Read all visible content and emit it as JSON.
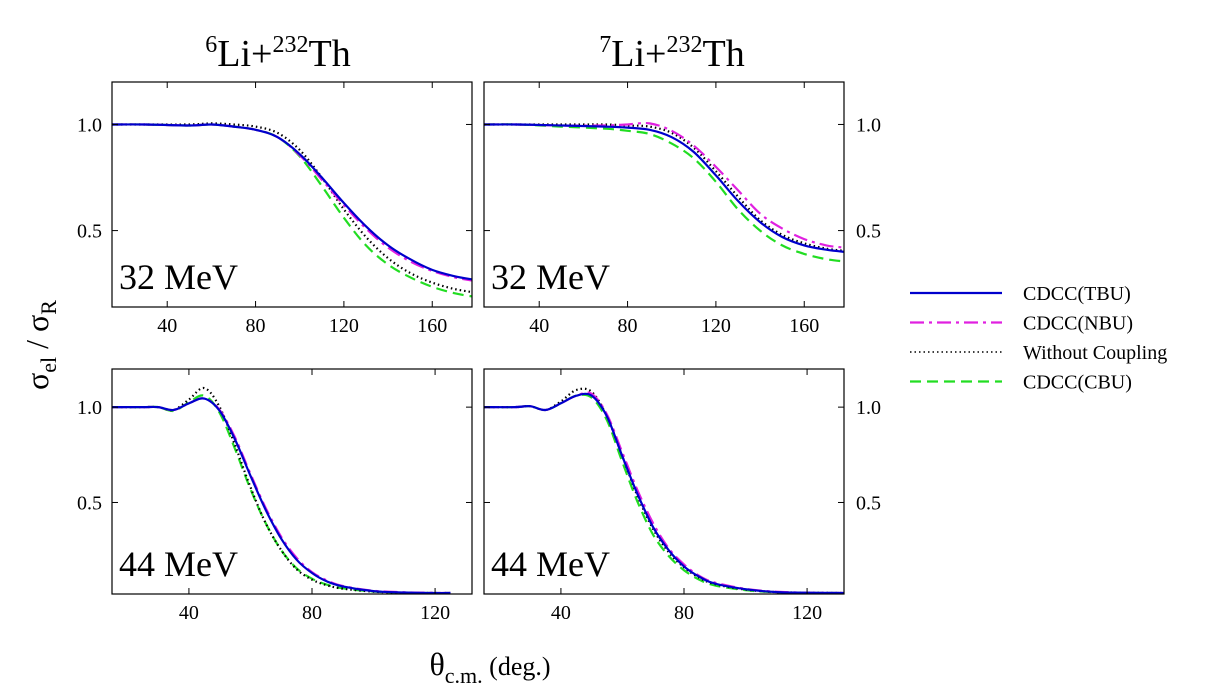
{
  "figure": {
    "ylabel_main": "σ",
    "ylabel_sub1": "el",
    "ylabel_slash": " / σ",
    "ylabel_sub2": "R",
    "xlabel_main": "θ",
    "xlabel_sub": "c.m.",
    "xlabel_unit": " (deg.)",
    "columns": [
      {
        "mass": "6",
        "proj": "Li+",
        "tmass": "232",
        "target": "Th"
      },
      {
        "mass": "7",
        "proj": "Li+",
        "tmass": "232",
        "target": "Th"
      }
    ]
  },
  "legend": [
    {
      "label": "CDCC(TBU)",
      "color": "#0000cc",
      "dash": "solid"
    },
    {
      "label": "CDCC(NBU)",
      "color": "#e020e0",
      "dash": "dashdot"
    },
    {
      "label": "Without Coupling",
      "color": "#000000",
      "dash": "dotted"
    },
    {
      "label": "CDCC(CBU)",
      "color": "#22dd22",
      "dash": "dashed"
    }
  ],
  "chart_data": [
    {
      "type": "line",
      "system": "6Li+232Th",
      "energy": "32 MeV",
      "xlim": [
        15,
        178
      ],
      "ylim": [
        0.14,
        1.2
      ],
      "xticks": [
        40,
        80,
        120,
        160
      ],
      "yticks": [
        0.5,
        1.0
      ],
      "ytick_labels": [
        "0.5",
        "1.0"
      ],
      "ytick_side": "left",
      "series": [
        {
          "name": "CDCC(TBU)",
          "x": [
            15,
            30,
            50,
            60,
            70,
            80,
            90,
            100,
            110,
            120,
            130,
            140,
            150,
            160,
            170,
            178
          ],
          "y": [
            1.0,
            1.0,
            0.995,
            1.0,
            0.99,
            0.975,
            0.94,
            0.86,
            0.75,
            0.63,
            0.52,
            0.43,
            0.365,
            0.315,
            0.285,
            0.27
          ]
        },
        {
          "name": "CDCC(NBU)",
          "x": [
            15,
            30,
            50,
            60,
            70,
            80,
            90,
            100,
            110,
            120,
            130,
            140,
            150,
            160,
            170,
            178
          ],
          "y": [
            1.0,
            1.0,
            0.995,
            1.0,
            0.99,
            0.975,
            0.94,
            0.855,
            0.74,
            0.62,
            0.51,
            0.42,
            0.355,
            0.31,
            0.28,
            0.265
          ]
        },
        {
          "name": "Without Coupling",
          "x": [
            15,
            30,
            50,
            60,
            70,
            80,
            90,
            100,
            110,
            120,
            130,
            140,
            150,
            160,
            170,
            178
          ],
          "y": [
            1.0,
            1.0,
            1.0,
            1.005,
            1.0,
            0.99,
            0.96,
            0.88,
            0.75,
            0.6,
            0.47,
            0.37,
            0.3,
            0.255,
            0.225,
            0.21
          ]
        },
        {
          "name": "CDCC(CBU)",
          "x": [
            15,
            30,
            50,
            60,
            70,
            80,
            90,
            100,
            110,
            120,
            130,
            140,
            150,
            160,
            170,
            178
          ],
          "y": [
            1.0,
            1.0,
            0.995,
            1.0,
            0.99,
            0.975,
            0.94,
            0.85,
            0.71,
            0.56,
            0.43,
            0.34,
            0.28,
            0.235,
            0.205,
            0.19
          ]
        }
      ]
    },
    {
      "type": "line",
      "system": "7Li+232Th",
      "energy": "32 MeV",
      "xlim": [
        15,
        178
      ],
      "ylim": [
        0.14,
        1.2
      ],
      "xticks": [
        40,
        80,
        120,
        160
      ],
      "yticks": [
        0.5,
        1.0
      ],
      "ytick_labels": [
        "0.5",
        "1.0"
      ],
      "ytick_side": "right",
      "series": [
        {
          "name": "CDCC(TBU)",
          "x": [
            15,
            30,
            50,
            70,
            80,
            90,
            100,
            110,
            120,
            130,
            140,
            150,
            160,
            170,
            178
          ],
          "y": [
            1.0,
            1.0,
            0.995,
            0.99,
            0.985,
            0.975,
            0.94,
            0.87,
            0.76,
            0.64,
            0.54,
            0.47,
            0.43,
            0.41,
            0.4
          ]
        },
        {
          "name": "CDCC(NBU)",
          "x": [
            15,
            30,
            50,
            70,
            80,
            90,
            100,
            110,
            120,
            130,
            140,
            150,
            160,
            170,
            178
          ],
          "y": [
            1.0,
            1.0,
            0.995,
            0.995,
            1.0,
            1.005,
            0.97,
            0.9,
            0.8,
            0.69,
            0.58,
            0.51,
            0.46,
            0.43,
            0.42
          ]
        },
        {
          "name": "Without Coupling",
          "x": [
            15,
            30,
            50,
            70,
            80,
            90,
            100,
            110,
            120,
            130,
            140,
            150,
            160,
            170,
            178
          ],
          "y": [
            1.0,
            1.0,
            1.0,
            1.0,
            0.995,
            0.99,
            0.96,
            0.89,
            0.78,
            0.66,
            0.55,
            0.48,
            0.44,
            0.415,
            0.405
          ]
        },
        {
          "name": "CDCC(CBU)",
          "x": [
            15,
            30,
            50,
            70,
            80,
            90,
            100,
            110,
            120,
            130,
            140,
            150,
            160,
            170,
            178
          ],
          "y": [
            1.0,
            1.0,
            0.99,
            0.98,
            0.97,
            0.955,
            0.91,
            0.84,
            0.73,
            0.6,
            0.5,
            0.43,
            0.39,
            0.365,
            0.355
          ]
        }
      ]
    },
    {
      "type": "line",
      "system": "6Li+232Th",
      "energy": "44 MeV",
      "xlim": [
        15,
        132
      ],
      "ylim": [
        0.02,
        1.2
      ],
      "xticks": [
        40,
        80,
        120
      ],
      "yticks": [
        0.5,
        1.0
      ],
      "ytick_labels": [
        "0.5",
        "1.0"
      ],
      "ytick_side": "left",
      "series": [
        {
          "name": "CDCC(TBU)",
          "x": [
            15,
            25,
            30,
            35,
            40,
            45,
            50,
            55,
            60,
            65,
            70,
            75,
            80,
            85,
            90,
            100,
            110,
            120,
            125
          ],
          "y": [
            1.0,
            1.0,
            1.0,
            0.985,
            1.02,
            1.045,
            0.98,
            0.83,
            0.64,
            0.46,
            0.31,
            0.2,
            0.13,
            0.085,
            0.06,
            0.035,
            0.028,
            0.025,
            0.025
          ]
        },
        {
          "name": "CDCC(NBU)",
          "x": [
            15,
            25,
            30,
            35,
            40,
            45,
            50,
            55,
            60,
            65,
            70,
            75,
            80,
            85,
            90,
            100,
            110,
            120,
            125
          ],
          "y": [
            1.0,
            1.0,
            1.0,
            0.985,
            1.02,
            1.045,
            0.985,
            0.84,
            0.65,
            0.47,
            0.32,
            0.21,
            0.135,
            0.09,
            0.062,
            0.037,
            0.029,
            0.026,
            0.025
          ]
        },
        {
          "name": "Without Coupling",
          "x": [
            15,
            25,
            30,
            35,
            40,
            45,
            50,
            55,
            60,
            65,
            70,
            75,
            80,
            85,
            90,
            100,
            110,
            120,
            125
          ],
          "y": [
            1.0,
            1.0,
            1.0,
            0.985,
            1.04,
            1.1,
            1.0,
            0.8,
            0.58,
            0.39,
            0.25,
            0.15,
            0.095,
            0.065,
            0.048,
            0.032,
            0.027,
            0.025,
            0.025
          ]
        },
        {
          "name": "CDCC(CBU)",
          "x": [
            15,
            25,
            30,
            35,
            40,
            45,
            50,
            55,
            60,
            65,
            70,
            75,
            80,
            85,
            90,
            100,
            110,
            120,
            125
          ],
          "y": [
            1.0,
            1.0,
            1.0,
            0.98,
            1.025,
            1.06,
            0.97,
            0.78,
            0.57,
            0.39,
            0.25,
            0.155,
            0.1,
            0.068,
            0.05,
            0.033,
            0.027,
            0.025,
            0.025
          ]
        }
      ]
    },
    {
      "type": "line",
      "system": "7Li+232Th",
      "energy": "44 MeV",
      "xlim": [
        15,
        132
      ],
      "ylim": [
        0.02,
        1.2
      ],
      "xticks": [
        40,
        80,
        120
      ],
      "yticks": [
        0.5,
        1.0
      ],
      "ytick_labels": [
        "0.5",
        "1.0"
      ],
      "ytick_side": "right",
      "series": [
        {
          "name": "CDCC(TBU)",
          "x": [
            15,
            25,
            30,
            35,
            40,
            45,
            50,
            55,
            60,
            65,
            70,
            75,
            80,
            85,
            90,
            100,
            110,
            120,
            132
          ],
          "y": [
            1.0,
            1.0,
            1.005,
            0.985,
            1.02,
            1.06,
            1.06,
            0.95,
            0.74,
            0.54,
            0.37,
            0.25,
            0.165,
            0.11,
            0.075,
            0.045,
            0.03,
            0.027,
            0.025
          ]
        },
        {
          "name": "CDCC(NBU)",
          "x": [
            15,
            25,
            30,
            35,
            40,
            45,
            50,
            55,
            60,
            65,
            70,
            75,
            80,
            85,
            90,
            100,
            110,
            120,
            132
          ],
          "y": [
            1.0,
            1.0,
            1.005,
            0.985,
            1.02,
            1.06,
            1.07,
            0.96,
            0.76,
            0.56,
            0.39,
            0.26,
            0.175,
            0.115,
            0.08,
            0.047,
            0.032,
            0.027,
            0.025
          ]
        },
        {
          "name": "Without Coupling",
          "x": [
            15,
            25,
            30,
            35,
            40,
            45,
            50,
            55,
            60,
            65,
            70,
            75,
            80,
            85,
            90,
            100,
            110,
            120,
            132
          ],
          "y": [
            1.0,
            1.0,
            1.005,
            0.985,
            1.03,
            1.09,
            1.08,
            0.95,
            0.74,
            0.53,
            0.36,
            0.24,
            0.16,
            0.105,
            0.072,
            0.043,
            0.03,
            0.027,
            0.025
          ]
        },
        {
          "name": "CDCC(CBU)",
          "x": [
            15,
            25,
            30,
            35,
            40,
            45,
            50,
            55,
            60,
            65,
            70,
            75,
            80,
            85,
            90,
            100,
            110,
            120,
            132
          ],
          "y": [
            1.0,
            1.0,
            1.005,
            0.985,
            1.02,
            1.06,
            1.05,
            0.93,
            0.71,
            0.5,
            0.33,
            0.22,
            0.145,
            0.095,
            0.065,
            0.04,
            0.029,
            0.026,
            0.025
          ]
        }
      ]
    }
  ]
}
